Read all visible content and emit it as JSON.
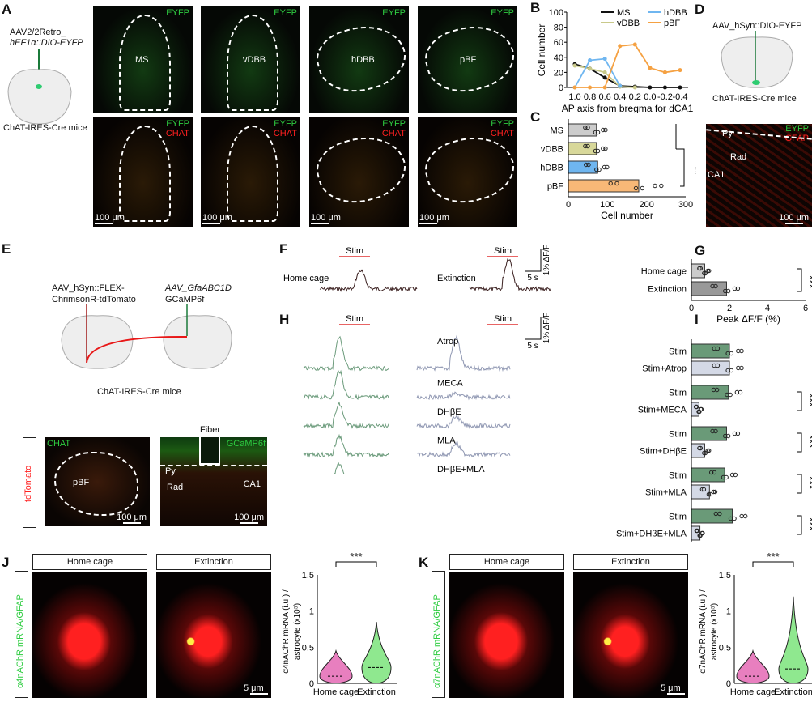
{
  "panels": {
    "A": "A",
    "B": "B",
    "C": "C",
    "D": "D",
    "E": "E",
    "F": "F",
    "G": "G",
    "H": "H",
    "I": "I",
    "J": "J",
    "K": "K"
  },
  "A": {
    "virus_line1": "AAV2/2Retro_",
    "virus_line2": "hEF1α::DIO-EYFP",
    "mice": "ChAT-IRES-Cre mice",
    "eyfp": "EYFP",
    "chat": "CHAT",
    "regions": [
      "MS",
      "vDBB",
      "hDBB",
      "pBF"
    ],
    "scale": "100 μm"
  },
  "D": {
    "virus": "AAV_hSyn::DIO-EYFP",
    "mice": "ChAT-IRES-Cre mice",
    "eyfp": "EYFP",
    "gfap": "GFAP",
    "py": "Py",
    "rad": "Rad",
    "ca1": "CA1",
    "scale": "100 μm"
  },
  "E": {
    "virus1_line1": "AAV_hSyn::FLEX-",
    "virus1_line2": "ChrimsonR-tdTomato",
    "virus2_line1": "AAV_GfaABC1D",
    "virus2_line2": "GCaMP6f",
    "mice": "ChAT-IRES-Cre mice",
    "tdtomato": "tdTomato",
    "chat": "CHAT",
    "pbf": "pBF",
    "fiber": "Fiber",
    "gcamp": "GCaMP6f",
    "py": "Py",
    "rad": "Rad",
    "ca1": "CA1",
    "scale": "100 μm"
  },
  "F": {
    "stim": "Stim",
    "home": "Home cage",
    "ext": "Extinction",
    "scale_y": "1% ΔF/F",
    "scale_x": "5 s"
  },
  "H": {
    "stim": "Stim",
    "scale_y": "1% ΔF/F",
    "scale_x": "5 s",
    "drugs": [
      "Atrop",
      "MECA",
      "DHβE",
      "MLA",
      "DHβE+MLA"
    ],
    "control_peaks": [
      1,
      0.85,
      0.7,
      0.6,
      0.65
    ],
    "drug_peaks": [
      1,
      0.12,
      0.3,
      0.35,
      0.1
    ]
  },
  "J": {
    "home": "Home cage",
    "ext": "Extinction",
    "ylabel": "α4nAChR mRNA/GFAP",
    "scale": "5 μm"
  },
  "K": {
    "home": "Home cage",
    "ext": "Extinction",
    "ylabel": "α7nAChR mRNA/GFAP",
    "scale": "5 μm"
  },
  "colors": {
    "MS": "#111111",
    "vDBB": "#c9c98a",
    "hDBB": "#6fb6f0",
    "pBF": "#f5a142",
    "stim": "#6a9a78",
    "drug": "#d4d9e6",
    "home": "#cccccc",
    "ext": "#999999",
    "trace_ctrl": "#6a9a7a",
    "trace_drug": "#8f97b2",
    "trace_F": "#3a1f1f",
    "vio_home": "#e87fbf",
    "vio_ext": "#8fe88f"
  },
  "chart_data": [
    {
      "id": "B",
      "type": "line",
      "xlabel": "AP axis from bregma for dCA1",
      "ylabel": "Cell number",
      "x": [
        "1.0",
        "0.8",
        "0.6",
        "0.4",
        "0.2",
        "0.0",
        "-0.2",
        "-0.4"
      ],
      "ylim": [
        0,
        100
      ],
      "yticks": [
        "0",
        "20",
        "40",
        "60",
        "80",
        "100"
      ],
      "series": [
        {
          "name": "MS",
          "values": [
            31,
            25,
            13,
            2,
            1,
            0,
            0,
            0
          ]
        },
        {
          "name": "vDBB",
          "values": [
            29,
            25,
            20,
            1,
            0,
            null,
            null,
            null
          ]
        },
        {
          "name": "hDBB",
          "values": [
            0,
            36,
            38,
            2,
            null,
            null,
            null,
            null
          ]
        },
        {
          "name": "pBF",
          "values": [
            0,
            0,
            0,
            55,
            57,
            26,
            20,
            23
          ]
        }
      ]
    },
    {
      "id": "C",
      "type": "bar",
      "categories": [
        "MS",
        "vDBB",
        "hDBB",
        "pBF"
      ],
      "values": [
        72,
        72,
        75,
        180
      ],
      "xlabel": "Cell number",
      "xlim": [
        0,
        300
      ],
      "xticks": [
        "0",
        "100",
        "200",
        "300"
      ],
      "sig": "**"
    },
    {
      "id": "G",
      "type": "bar",
      "categories": [
        "Home cage",
        "Extinction"
      ],
      "values": [
        0.7,
        1.85
      ],
      "xlabel": "Peak ΔF/F (%)",
      "xlim": [
        0,
        6
      ],
      "xticks": [
        "0",
        "2",
        "4",
        "6"
      ],
      "sig": "***"
    },
    {
      "id": "I",
      "type": "bar",
      "categories": [
        "Stim",
        "Stim+Atrop",
        "Stim",
        "Stim+MECA",
        "Stim",
        "Stim+DHβE",
        "Stim",
        "Stim+MLA",
        "Stim",
        "Stim+DHβE+MLA"
      ],
      "values": [
        2.0,
        2.0,
        1.95,
        0.4,
        1.85,
        0.7,
        1.75,
        0.95,
        2.15,
        0.45
      ],
      "xlabel": "Peak ΔF/F (%)",
      "xlim": [
        0,
        6
      ],
      "xticks": [
        "0",
        "2",
        "4",
        "6"
      ],
      "sig": [
        "",
        "***",
        "***",
        "***",
        "***"
      ]
    },
    {
      "id": "J",
      "type": "violin",
      "categories": [
        "Home cage",
        "Extinction"
      ],
      "medians": [
        0.1,
        0.22
      ],
      "max": [
        0.45,
        0.85
      ],
      "ylabel1": "α4nAChR mRNA (i.u.) /",
      "ylabel2": "astrocyte (x10⁵)",
      "ylim": [
        0,
        1.5
      ],
      "yticks": [
        "0",
        "0.5",
        "1",
        "1.5"
      ],
      "sig": "***"
    },
    {
      "id": "K",
      "type": "violin",
      "categories": [
        "Home cage",
        "Extinction"
      ],
      "medians": [
        0.1,
        0.2
      ],
      "max": [
        0.45,
        1.2
      ],
      "ylabel1": "α7nAChR mRNA (i.u.) /",
      "ylabel2": "astrocyte (x10⁵)",
      "ylim": [
        0,
        1.5
      ],
      "yticks": [
        "0",
        "0.5",
        "1",
        "1.5"
      ],
      "sig": "***"
    }
  ]
}
